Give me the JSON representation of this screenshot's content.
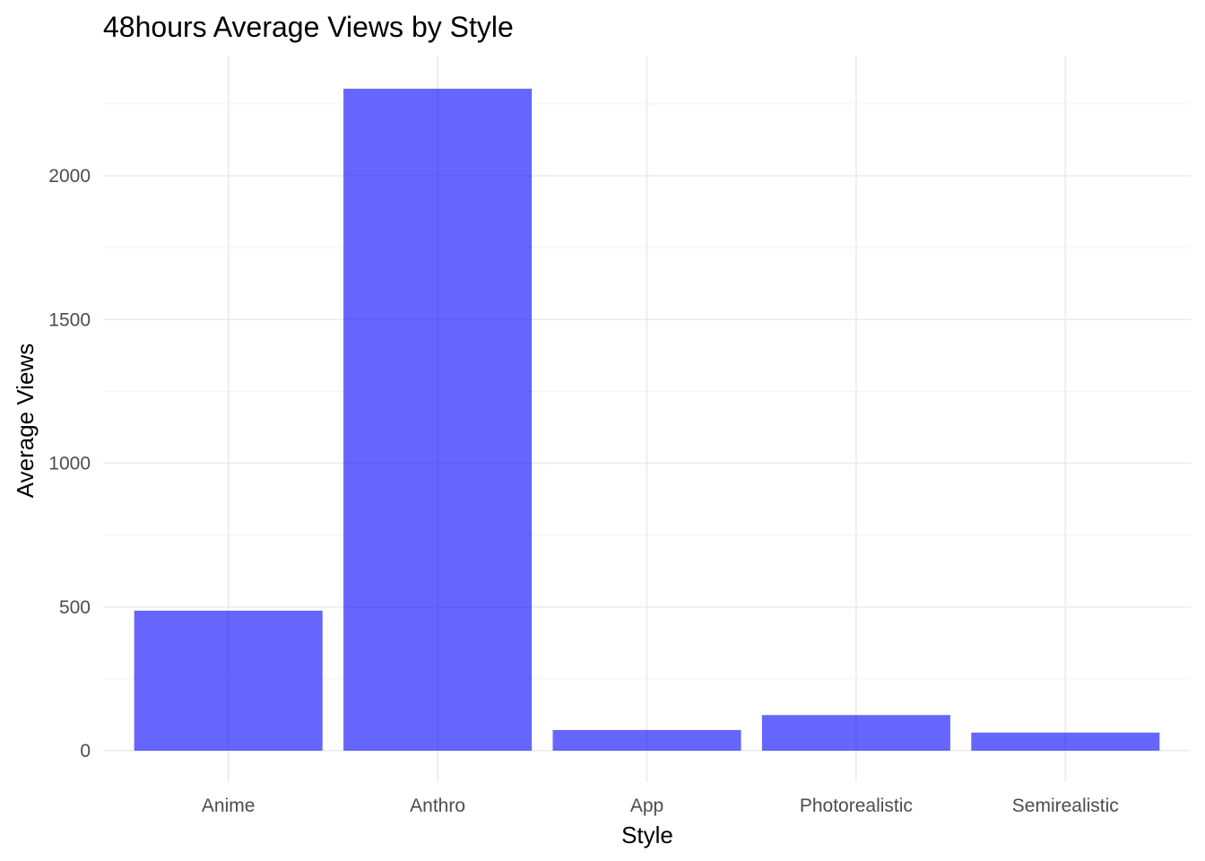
{
  "chart_data": {
    "type": "bar",
    "title": "48hours Average Views by Style",
    "xlabel": "Style",
    "ylabel": "Average Views",
    "categories": [
      "Anime",
      "Anthro",
      "App",
      "Photorealistic",
      "Semirealistic"
    ],
    "values": [
      487,
      2303,
      72,
      124,
      63
    ],
    "ylim": [
      0,
      2400
    ],
    "yticks": [
      0,
      500,
      1000,
      1500,
      2000
    ],
    "ytick_labels": [
      "0",
      "500",
      "1000",
      "1500",
      "2000"
    ],
    "grid": true,
    "legend": "none",
    "bar_color": "#0000ff"
  }
}
